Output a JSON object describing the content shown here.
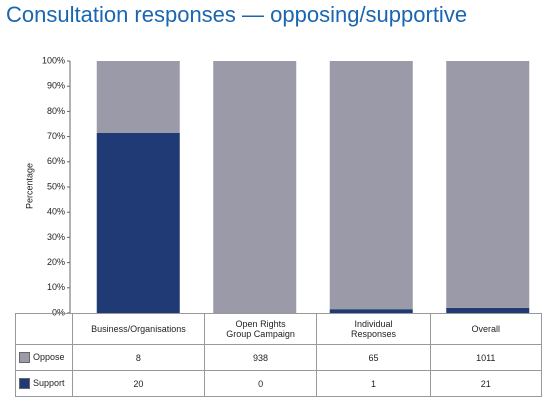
{
  "chart_data": {
    "type": "bar",
    "title": "Consultation responses — opposing/supportive",
    "y_label": "Percentage",
    "stacking": "percent",
    "categories": [
      "Business/Organisations",
      "Open Rights Group Campaign",
      "Individual Responses",
      "Overall"
    ],
    "series": [
      {
        "name": "Oppose",
        "color": "#9a9aa8",
        "values": [
          8,
          938,
          65,
          1011
        ]
      },
      {
        "name": "Support",
        "color": "#1f3a74",
        "values": [
          20,
          0,
          1,
          21
        ]
      }
    ],
    "ylim": [
      0,
      100
    ],
    "yticks": [
      {
        "value": 0,
        "label": "0%"
      },
      {
        "value": 10,
        "label": "10%"
      },
      {
        "value": 20,
        "label": "20%"
      },
      {
        "value": 30,
        "label": "30%"
      },
      {
        "value": 40,
        "label": "40%"
      },
      {
        "value": 50,
        "label": "50%"
      },
      {
        "value": 60,
        "label": "60%"
      },
      {
        "value": 70,
        "label": "70%"
      },
      {
        "value": 80,
        "label": "80%"
      },
      {
        "value": 90,
        "label": "90%"
      },
      {
        "value": 100,
        "label": "100%"
      }
    ]
  }
}
